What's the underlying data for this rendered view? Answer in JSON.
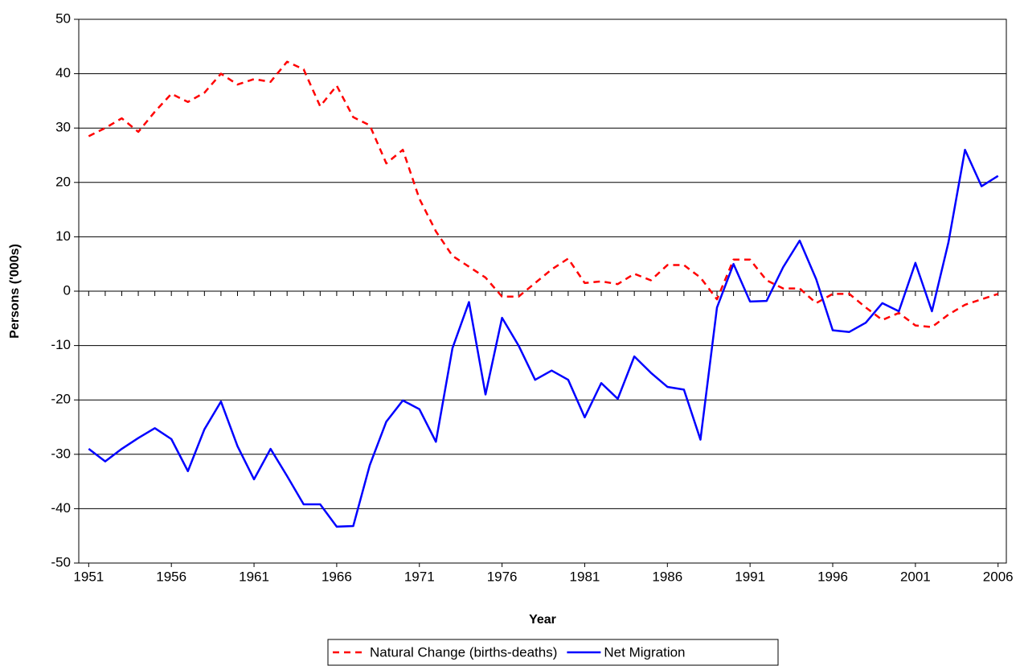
{
  "chart_data": {
    "type": "line",
    "x_label": "Year",
    "y_label": "Persons ('000s)",
    "x": [
      1951,
      1952,
      1953,
      1954,
      1955,
      1956,
      1957,
      1958,
      1959,
      1960,
      1961,
      1962,
      1963,
      1964,
      1965,
      1966,
      1967,
      1968,
      1969,
      1970,
      1971,
      1972,
      1973,
      1974,
      1975,
      1976,
      1977,
      1978,
      1979,
      1980,
      1981,
      1982,
      1983,
      1984,
      1985,
      1986,
      1987,
      1988,
      1989,
      1990,
      1991,
      1992,
      1993,
      1994,
      1995,
      1996,
      1997,
      1998,
      1999,
      2000,
      2001,
      2002,
      2003,
      2004,
      2005,
      2006
    ],
    "xlim": [
      1950.4,
      2006.5
    ],
    "xticks": [
      1951,
      1956,
      1961,
      1966,
      1971,
      1976,
      1981,
      1986,
      1991,
      1996,
      2001,
      2006
    ],
    "ylim": [
      -50,
      50
    ],
    "yticks": [
      -50,
      -40,
      -30,
      -20,
      -10,
      0,
      10,
      20,
      30,
      40,
      50
    ],
    "grid": true,
    "legend": "bottom",
    "series": [
      {
        "name": "Natural Change (births-deaths)",
        "color": "#ff0000",
        "dashed": true,
        "values": [
          28.5,
          30,
          31.8,
          29.3,
          33,
          36.3,
          34.8,
          36.5,
          40,
          38,
          39,
          38.5,
          42.2,
          40.8,
          34,
          37.8,
          32,
          30.5,
          23.5,
          26,
          17,
          11,
          6.5,
          4.5,
          2.5,
          -1,
          -1,
          1.5,
          4,
          6,
          1.5,
          1.8,
          1.3,
          3.2,
          2,
          4.8,
          4.8,
          2.5,
          -1.5,
          5.8,
          5.8,
          2,
          0.5,
          0.5,
          -2.2,
          -0.5,
          -0.5,
          -3,
          -5.3,
          -4,
          -6.3,
          -6.6,
          -4.3,
          -2.5,
          -1.5,
          -0.5
        ]
      },
      {
        "name": "Net Migration",
        "color": "#0000ff",
        "dashed": false,
        "values": [
          -29,
          -31.3,
          -29,
          -27,
          -25.2,
          -27.2,
          -33.1,
          -25.4,
          -20.3,
          -28.5,
          -34.6,
          -29,
          -34,
          -39.2,
          -39.2,
          -43.3,
          -43.2,
          -32,
          -24,
          -20.1,
          -21.7,
          -27.7,
          -10.5,
          -2,
          -19,
          -4.9,
          -10,
          -16.3,
          -14.6,
          -16.3,
          -23.2,
          -16.9,
          -19.8,
          -12,
          -15,
          -17.6,
          -18.1,
          -27.3,
          -3,
          5,
          -1.9,
          -1.8,
          4.4,
          9.3,
          2.2,
          -7.2,
          -7.5,
          -5.8,
          -2.2,
          -3.7,
          5.2,
          -3.7,
          9,
          26,
          19.3,
          21.2
        ]
      }
    ]
  }
}
